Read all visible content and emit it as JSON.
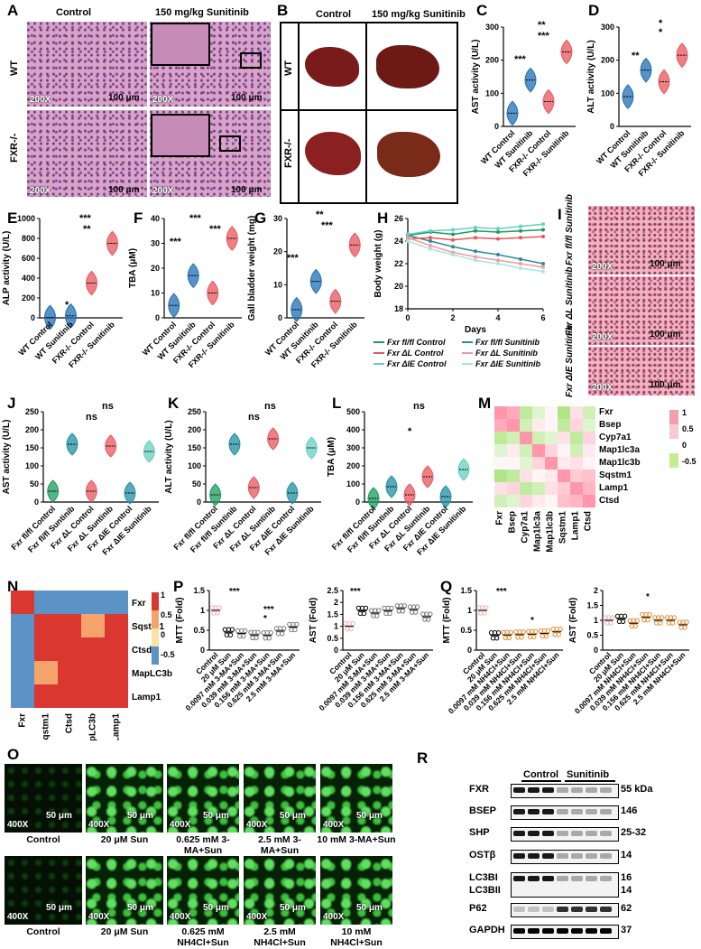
{
  "panels": {
    "A": "A",
    "B": "B",
    "C": "C",
    "D": "D",
    "E": "E",
    "F": "F",
    "G": "G",
    "H": "H",
    "I": "I",
    "J": "J",
    "K": "K",
    "L": "L",
    "M": "M",
    "N": "N",
    "O": "O",
    "P": "P",
    "Q": "Q",
    "R": "R"
  },
  "panel_a": {
    "col1": "Control",
    "col2": "150 mg/kg Sunitinib",
    "row1": "WT",
    "row2": "FXR-/-",
    "mag": "200X",
    "scale": "100 μm"
  },
  "panel_b": {
    "col1": "Control",
    "col2": "150 mg/kg Sunitinib",
    "row1": "WT",
    "row2": "FXR-/-"
  },
  "group4_labels": [
    "WT Control",
    "WT Sunitinib",
    "FXR-/- Control",
    "FXR-/- Sunitinib"
  ],
  "sig": {
    "s1": "*",
    "s2": "**",
    "s3": "***",
    "ns": "ns"
  },
  "panel_i": {
    "rows": [
      "Fxr fl/fl Sunitinib",
      "Fxr ΔL Sunitinib",
      "Fxr ΔIE Sunitinib"
    ],
    "mag": "200X",
    "scale": "100 μm"
  },
  "panel_h": {
    "legend": [
      "Fxr fl/fl Control",
      "Fxr fl/fl Sunitinib",
      "Fxr ΔL Control",
      "Fxr ΔL Sunitinib",
      "Fxr ΔIE Control",
      "Fxr ΔIE Sunitinib"
    ],
    "xlabel": "Days",
    "ylabel": "Body weight (g)"
  },
  "group6_labels": [
    "Fxr fl/fl Control",
    "Fxr fl/fl Suntinib",
    "Fxr ΔL Control",
    "Fxr ΔL Suntinib",
    "Fxr ΔIE Control",
    "Fxr ΔIE Sunitinib"
  ],
  "panel_m": {
    "genes": [
      "Fxr",
      "Bsep",
      "Cyp7a1",
      "Map1lc3a",
      "Map1lc3b",
      "Sqstm1",
      "Lamp1",
      "Ctsd"
    ],
    "scale": [
      "1",
      "0.5",
      "0",
      "-0.5"
    ]
  },
  "panel_n": {
    "genes": [
      "Fxr",
      "Sqstm1",
      "Ctsd",
      "MapLC3b",
      "Lamp1"
    ],
    "scale": [
      "1",
      "0.5",
      "0",
      "-0.5"
    ]
  },
  "panel_o": {
    "mag": "400X",
    "scale": "50 μm",
    "row1": [
      "Control",
      "20 μM Sun",
      "0.625 mM 3-MA+Sun",
      "2.5 mM 3-MA+Sun",
      "10 mM 3-MA+Sun"
    ],
    "row2": [
      "Control",
      "20 μM Sun",
      "0.625 mM NH4Cl+Sun",
      "2.5 mM NH4Cl+Sun",
      "10 mM NH4Cl+Sun"
    ]
  },
  "panel_p_labels": [
    "Control",
    "20 μM Sun",
    "0.0097 mM 3-MA+Sun",
    "0.039 mM 3-MA+Sun",
    "0.156 mM 3-MA+Sun",
    "0.625 mM 3-MA+Sun",
    "2.5 mM 3-MA+Sun"
  ],
  "panel_q_labels": [
    "Control",
    "20 μM Sun",
    "0.0097 mM NH4Cl+Sun",
    "0.039 mM NH4Cl+Sun",
    "0.156 mM NH4Cl+Sun",
    "0.625 mM NH4Cl+Sun",
    "2.5 mM NH4Cl+Sun"
  ],
  "panel_r": {
    "control": "Control",
    "sunitinib": "Sunitinib",
    "proteins": [
      "FXR",
      "BSEP",
      "SHP",
      "OSTβ",
      "LC3BI",
      "LC3BII",
      "P62",
      "GAPDH"
    ],
    "kda": [
      "55 kDa",
      "146",
      "25-32",
      "14",
      "16",
      "14",
      "62",
      "37"
    ]
  },
  "chart_data": [
    {
      "id": "C",
      "type": "violin",
      "ylabel": "AST activity (U/L)",
      "ylim": [
        0,
        300
      ],
      "yticks": [
        0,
        100,
        200,
        300
      ],
      "categories": [
        "WT Control",
        "WT Sunitinib",
        "FXR-/- Control",
        "FXR-/- Sunitinib"
      ],
      "values": [
        40,
        140,
        75,
        225
      ],
      "colors": [
        "#1f6fb3",
        "#1f6fb3",
        "#e8565c",
        "#e8565c"
      ]
    },
    {
      "id": "D",
      "type": "violin",
      "ylabel": "ALT activity (U/L)",
      "ylim": [
        0,
        300
      ],
      "yticks": [
        0,
        100,
        200,
        300
      ],
      "categories": [
        "WT Control",
        "WT Sunitinib",
        "FXR-/- Control",
        "FXR-/- Sunitinib"
      ],
      "values": [
        90,
        170,
        135,
        215
      ],
      "colors": [
        "#1f6fb3",
        "#1f6fb3",
        "#e8565c",
        "#e8565c"
      ]
    },
    {
      "id": "E",
      "type": "violin",
      "ylabel": "ALP activity (U/L)",
      "ylim": [
        0,
        1000
      ],
      "yticks": [
        0,
        200,
        400,
        600,
        800,
        1000
      ],
      "categories": [
        "WT Control",
        "WT Sunitinib",
        "FXR-/- Control",
        "FXR-/- Sunitinib"
      ],
      "values": [
        5,
        20,
        350,
        750
      ],
      "colors": [
        "#1f6fb3",
        "#1f6fb3",
        "#e8565c",
        "#e8565c"
      ]
    },
    {
      "id": "F",
      "type": "violin",
      "ylabel": "TBA (μM)",
      "ylim": [
        0,
        40
      ],
      "yticks": [
        0,
        10,
        20,
        30,
        40
      ],
      "categories": [
        "WT Control",
        "WT Sunitinib",
        "FXR-/- Control",
        "FXR-/- Sunitinib"
      ],
      "values": [
        5,
        17,
        10,
        32
      ],
      "colors": [
        "#1f6fb3",
        "#1f6fb3",
        "#e8565c",
        "#e8565c"
      ]
    },
    {
      "id": "G",
      "type": "violin",
      "ylabel": "Gall bladder weight (mg)",
      "ylim": [
        0,
        30
      ],
      "yticks": [
        0,
        10,
        20,
        30
      ],
      "categories": [
        "WT Control",
        "WT Sunitinib",
        "FXR-/- Control",
        "FXR-/- Sunitinib"
      ],
      "values": [
        2.5,
        11,
        5,
        22
      ],
      "colors": [
        "#1f6fb3",
        "#1f6fb3",
        "#e8565c",
        "#e8565c"
      ]
    },
    {
      "id": "H",
      "type": "line",
      "xlabel": "Days",
      "ylabel": "Body weight (g)",
      "x": [
        0,
        1,
        2,
        3,
        4,
        5,
        6
      ],
      "ylim": [
        18,
        26
      ],
      "yticks": [
        18,
        20,
        22,
        24,
        26
      ],
      "xticks": [
        0,
        2,
        4,
        6
      ],
      "series": [
        {
          "name": "Fxr fl/fl Control",
          "color": "#1a9c5c",
          "values": [
            24.5,
            24.8,
            24.6,
            24.9,
            24.8,
            24.9,
            25.0
          ]
        },
        {
          "name": "Fxr fl/fl Sunitinib",
          "color": "#2a8a9c",
          "values": [
            24.5,
            24.0,
            23.5,
            23.1,
            22.8,
            22.4,
            22.0
          ]
        },
        {
          "name": "Fxr ΔL Control",
          "color": "#e8565c",
          "values": [
            24.2,
            24.3,
            24.1,
            24.3,
            24.2,
            24.3,
            24.4
          ]
        },
        {
          "name": "Fxr ΔL Sunitinib",
          "color": "#f29aa0",
          "values": [
            24.3,
            23.6,
            23.0,
            22.6,
            22.3,
            22.0,
            21.7
          ]
        },
        {
          "name": "Fxr ΔIE Control",
          "color": "#66cfc0",
          "values": [
            24.6,
            24.9,
            25.0,
            25.2,
            25.1,
            25.3,
            25.5
          ]
        },
        {
          "name": "Fxr ΔIE Sunitinib",
          "color": "#a8e6dd",
          "values": [
            24.0,
            23.3,
            22.8,
            22.3,
            22.0,
            21.6,
            21.3
          ]
        }
      ]
    },
    {
      "id": "J",
      "type": "violin",
      "ylabel": "AST activity (U/L)",
      "ylim": [
        0,
        250
      ],
      "yticks": [
        0,
        50,
        100,
        150,
        200,
        250
      ],
      "categories": [
        "Fxr fl/fl Control",
        "Fxr fl/fl Suntinib",
        "Fxr ΔL Control",
        "Fxr ΔL Suntinib",
        "Fxr ΔIE Control",
        "Fxr ΔIE Sunitinib"
      ],
      "values": [
        30,
        160,
        30,
        155,
        25,
        140
      ],
      "colors": [
        "#1a9c5c",
        "#1f8fa3",
        "#e8565c",
        "#e8565c",
        "#1f8fa3",
        "#66cfc0"
      ]
    },
    {
      "id": "K",
      "type": "violin",
      "ylabel": "ALT activity (U/L)",
      "ylim": [
        0,
        250
      ],
      "yticks": [
        0,
        50,
        100,
        150,
        200,
        250
      ],
      "categories": [
        "Fxr fl/fl Control",
        "Fxr fl/fl Suntinib",
        "Fxr ΔL Control",
        "Fxr ΔL Suntinib",
        "Fxr ΔIE Control",
        "Fxr ΔIE Sunitinib"
      ],
      "values": [
        20,
        160,
        40,
        175,
        25,
        150
      ],
      "colors": [
        "#1a9c5c",
        "#1f8fa3",
        "#e8565c",
        "#e8565c",
        "#1f8fa3",
        "#66cfc0"
      ]
    },
    {
      "id": "L",
      "type": "violin",
      "ylabel": "TBA (μM)",
      "ylim": [
        0,
        500
      ],
      "yticks": [
        0,
        100,
        200,
        300,
        400,
        500
      ],
      "categories": [
        "Fxr fl/fl Control",
        "Fxr fl/fl Suntinib",
        "Fxr ΔL Control",
        "Fxr ΔL Suntinib",
        "Fxr ΔIE Control",
        "Fxr ΔIE Sunitinib"
      ],
      "values": [
        20,
        85,
        40,
        140,
        30,
        180
      ],
      "colors": [
        "#1a9c5c",
        "#1f8fa3",
        "#e8565c",
        "#e8565c",
        "#1f8fa3",
        "#66cfc0"
      ]
    },
    {
      "id": "M",
      "type": "heatmap",
      "rows": [
        "Fxr",
        "Bsep",
        "Cyp7a1",
        "Map1lc3a",
        "Map1lc3b",
        "Sqstm1",
        "Lamp1",
        "Ctsd"
      ],
      "cols": [
        "Fxr",
        "Bsep",
        "Cyp7a1",
        "Map1lc3a",
        "Map1lc3b",
        "Sqstm1",
        "Lamp1",
        "Ctsd"
      ],
      "values": [
        [
          1,
          0.8,
          -0.4,
          -0.2,
          0.1,
          -0.5,
          0.3,
          -0.3
        ],
        [
          0.8,
          1,
          -0.3,
          0.2,
          0.1,
          -0.4,
          0.4,
          -0.2
        ],
        [
          -0.4,
          -0.3,
          1,
          -0.3,
          -0.2,
          0.3,
          -0.4,
          0.4
        ],
        [
          -0.2,
          0.2,
          -0.3,
          1,
          0.4,
          0.1,
          -0.3,
          0.2
        ],
        [
          0.1,
          0.1,
          -0.2,
          0.4,
          1,
          0.2,
          0.3,
          0.1
        ],
        [
          -0.5,
          -0.4,
          0.3,
          0.1,
          0.2,
          1,
          0.5,
          0.6
        ],
        [
          0.3,
          0.4,
          -0.4,
          -0.3,
          0.3,
          0.5,
          1,
          0.7
        ],
        [
          -0.3,
          -0.2,
          0.4,
          0.2,
          0.1,
          0.6,
          0.7,
          1
        ]
      ]
    },
    {
      "id": "N",
      "type": "heatmap",
      "rows": [
        "Fxr",
        "Sqstm1",
        "Ctsd",
        "MapLC3b",
        "Lamp1"
      ],
      "cols": [
        "Fxr",
        "Sqstm1",
        "Ctsd",
        "MapLC3b",
        "Lamp1"
      ],
      "values": [
        [
          1,
          -0.6,
          -0.6,
          -0.5,
          -0.5
        ],
        [
          -0.6,
          1,
          0.9,
          0.4,
          0.5
        ],
        [
          -0.6,
          0.9,
          1,
          0.5,
          0.6
        ],
        [
          -0.5,
          0.4,
          0.5,
          1,
          0.9
        ],
        [
          -0.5,
          0.5,
          0.6,
          0.9,
          1
        ]
      ]
    },
    {
      "id": "P1",
      "type": "scatter",
      "ylabel": "MTT (Fold)",
      "ylim": [
        0,
        1.5
      ],
      "yticks": [
        0,
        0.5,
        1.0,
        1.5
      ],
      "values": [
        1.0,
        0.45,
        0.42,
        0.38,
        0.37,
        0.48,
        0.58
      ]
    },
    {
      "id": "P2",
      "type": "scatter",
      "ylabel": "AST (Fold)",
      "ylim": [
        0,
        2.5
      ],
      "yticks": [
        0,
        0.5,
        1.0,
        1.5,
        2.0,
        2.5
      ],
      "values": [
        1.0,
        1.65,
        1.55,
        1.65,
        1.75,
        1.7,
        1.4
      ]
    },
    {
      "id": "Q1",
      "type": "scatter",
      "ylabel": "MTT (Fold)",
      "ylim": [
        0,
        1.5
      ],
      "yticks": [
        0,
        0.5,
        1.0,
        1.5
      ],
      "values": [
        1.0,
        0.37,
        0.38,
        0.39,
        0.4,
        0.42,
        0.46
      ]
    },
    {
      "id": "Q2",
      "type": "scatter",
      "ylabel": "AST (Fold)",
      "ylim": [
        0,
        2.0
      ],
      "yticks": [
        0,
        0.5,
        1.0,
        1.5,
        2.0
      ],
      "values": [
        1.0,
        1.05,
        0.9,
        1.1,
        1.0,
        1.0,
        0.85
      ]
    }
  ]
}
